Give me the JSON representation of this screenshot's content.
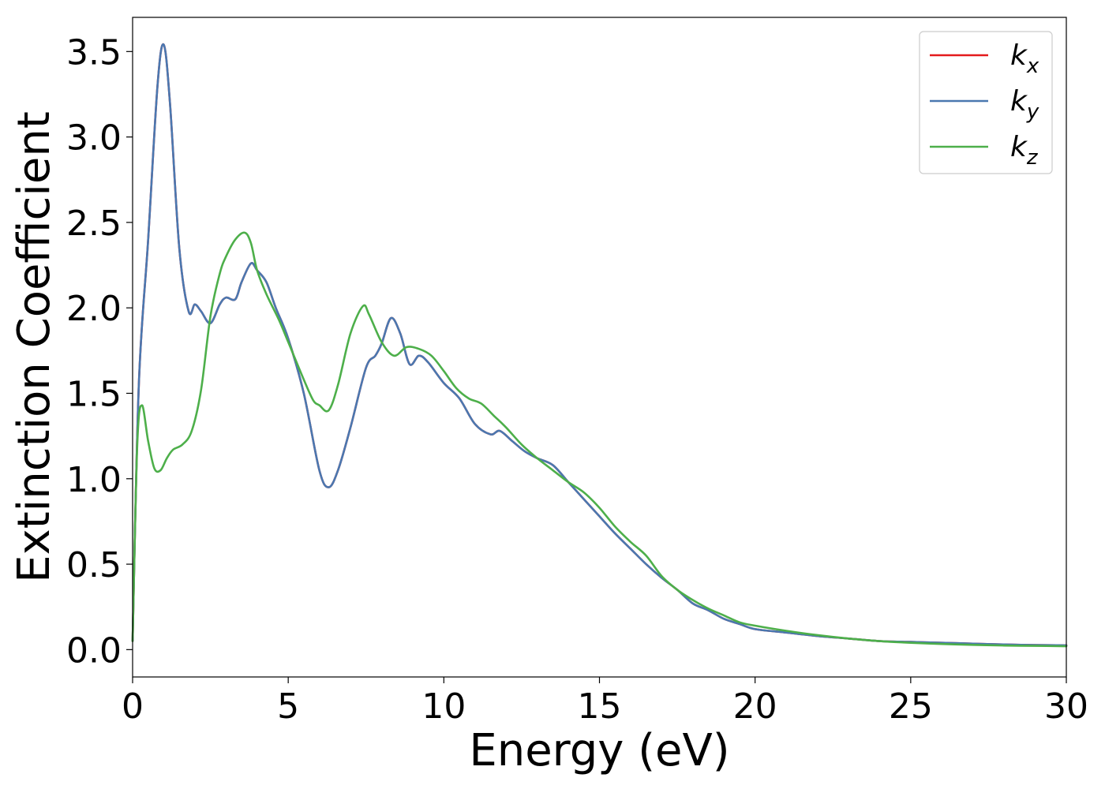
{
  "chart_data": {
    "type": "line",
    "title": "",
    "xlabel": "Energy (eV)",
    "ylabel": "Extinction Coefficient",
    "xlim": [
      0,
      30
    ],
    "ylim": [
      -0.16,
      3.7
    ],
    "xticks": [
      0,
      5,
      10,
      15,
      20,
      25,
      30
    ],
    "xtick_labels": [
      "0",
      "5",
      "10",
      "15",
      "20",
      "25",
      "30"
    ],
    "yticks": [
      0.0,
      0.5,
      1.0,
      1.5,
      2.0,
      2.5,
      3.0,
      3.5
    ],
    "ytick_labels": [
      "0.0",
      "0.5",
      "1.0",
      "1.5",
      "2.0",
      "2.5",
      "3.0",
      "3.5"
    ],
    "grid": false,
    "legend_position": "top-right",
    "series": [
      {
        "name": "k",
        "subscript": "x",
        "color": "#e41a1c",
        "x": [
          0,
          0.2,
          0.5,
          0.8,
          1.0,
          1.2,
          1.5,
          1.8,
          2.0,
          2.2,
          2.5,
          2.8,
          3.0,
          3.3,
          3.5,
          3.8,
          4.0,
          4.3,
          4.6,
          5.0,
          5.5,
          6.0,
          6.3,
          6.6,
          7.0,
          7.5,
          7.8,
          8.0,
          8.3,
          8.6,
          8.9,
          9.2,
          9.5,
          10.0,
          10.5,
          11.0,
          11.5,
          11.8,
          12.2,
          12.6,
          13.0,
          13.5,
          14.0,
          14.5,
          15.0,
          15.5,
          16.0,
          16.5,
          17.0,
          17.5,
          18.0,
          18.5,
          19.0,
          19.5,
          20.0,
          21.0,
          22.0,
          23.0,
          24.0,
          25.0,
          26.0,
          27.0,
          28.0,
          29.0,
          30.0
        ],
        "y": [
          0.05,
          1.55,
          2.4,
          3.3,
          3.54,
          3.2,
          2.35,
          1.98,
          2.02,
          1.98,
          1.91,
          2.02,
          2.06,
          2.05,
          2.15,
          2.26,
          2.22,
          2.15,
          2.0,
          1.82,
          1.5,
          1.05,
          0.95,
          1.05,
          1.3,
          1.65,
          1.72,
          1.79,
          1.94,
          1.85,
          1.67,
          1.72,
          1.68,
          1.56,
          1.47,
          1.32,
          1.26,
          1.28,
          1.22,
          1.16,
          1.12,
          1.08,
          0.98,
          0.88,
          0.78,
          0.68,
          0.59,
          0.5,
          0.42,
          0.35,
          0.27,
          0.23,
          0.18,
          0.15,
          0.12,
          0.1,
          0.08,
          0.065,
          0.05,
          0.045,
          0.04,
          0.035,
          0.03,
          0.027,
          0.025
        ]
      },
      {
        "name": "k",
        "subscript": "y",
        "color": "#4a78b0",
        "x": [
          0,
          0.2,
          0.5,
          0.8,
          1.0,
          1.2,
          1.5,
          1.8,
          2.0,
          2.2,
          2.5,
          2.8,
          3.0,
          3.3,
          3.5,
          3.8,
          4.0,
          4.3,
          4.6,
          5.0,
          5.5,
          6.0,
          6.3,
          6.6,
          7.0,
          7.5,
          7.8,
          8.0,
          8.3,
          8.6,
          8.9,
          9.2,
          9.5,
          10.0,
          10.5,
          11.0,
          11.5,
          11.8,
          12.2,
          12.6,
          13.0,
          13.5,
          14.0,
          14.5,
          15.0,
          15.5,
          16.0,
          16.5,
          17.0,
          17.5,
          18.0,
          18.5,
          19.0,
          19.5,
          20.0,
          21.0,
          22.0,
          23.0,
          24.0,
          25.0,
          26.0,
          27.0,
          28.0,
          29.0,
          30.0
        ],
        "y": [
          0.05,
          1.55,
          2.4,
          3.3,
          3.54,
          3.2,
          2.35,
          1.98,
          2.02,
          1.98,
          1.91,
          2.02,
          2.06,
          2.05,
          2.15,
          2.26,
          2.22,
          2.15,
          2.0,
          1.82,
          1.5,
          1.05,
          0.95,
          1.05,
          1.3,
          1.65,
          1.72,
          1.79,
          1.94,
          1.85,
          1.67,
          1.72,
          1.68,
          1.56,
          1.47,
          1.32,
          1.26,
          1.28,
          1.22,
          1.16,
          1.12,
          1.08,
          0.98,
          0.88,
          0.78,
          0.68,
          0.59,
          0.5,
          0.42,
          0.35,
          0.27,
          0.23,
          0.18,
          0.15,
          0.12,
          0.1,
          0.08,
          0.065,
          0.05,
          0.045,
          0.04,
          0.035,
          0.03,
          0.027,
          0.025
        ]
      },
      {
        "name": "k",
        "subscript": "z",
        "color": "#4daf4a",
        "x": [
          0,
          0.15,
          0.3,
          0.5,
          0.7,
          0.9,
          1.1,
          1.3,
          1.6,
          1.9,
          2.2,
          2.5,
          2.8,
          3.0,
          3.3,
          3.6,
          3.8,
          4.0,
          4.3,
          4.7,
          5.0,
          5.5,
          5.8,
          6.0,
          6.3,
          6.6,
          7.0,
          7.4,
          7.6,
          8.0,
          8.4,
          8.8,
          9.2,
          9.6,
          10.0,
          10.4,
          10.8,
          11.2,
          11.6,
          12.0,
          12.5,
          13.0,
          13.5,
          14.0,
          14.5,
          15.0,
          15.5,
          16.0,
          16.5,
          17.0,
          17.5,
          18.0,
          18.5,
          19.0,
          19.5,
          20.0,
          21.0,
          22.0,
          23.0,
          24.0,
          25.0,
          26.0,
          27.0,
          28.0,
          29.0,
          30.0
        ],
        "y": [
          0.05,
          1.2,
          1.43,
          1.22,
          1.06,
          1.05,
          1.12,
          1.17,
          1.2,
          1.28,
          1.52,
          1.95,
          2.2,
          2.3,
          2.4,
          2.44,
          2.38,
          2.22,
          2.08,
          1.93,
          1.8,
          1.58,
          1.46,
          1.43,
          1.4,
          1.55,
          1.85,
          2.01,
          1.96,
          1.8,
          1.72,
          1.77,
          1.76,
          1.72,
          1.63,
          1.53,
          1.47,
          1.44,
          1.37,
          1.3,
          1.2,
          1.12,
          1.05,
          0.98,
          0.92,
          0.83,
          0.72,
          0.63,
          0.55,
          0.43,
          0.35,
          0.29,
          0.24,
          0.2,
          0.16,
          0.14,
          0.11,
          0.085,
          0.065,
          0.05,
          0.04,
          0.033,
          0.028,
          0.024,
          0.022,
          0.02
        ]
      }
    ]
  }
}
